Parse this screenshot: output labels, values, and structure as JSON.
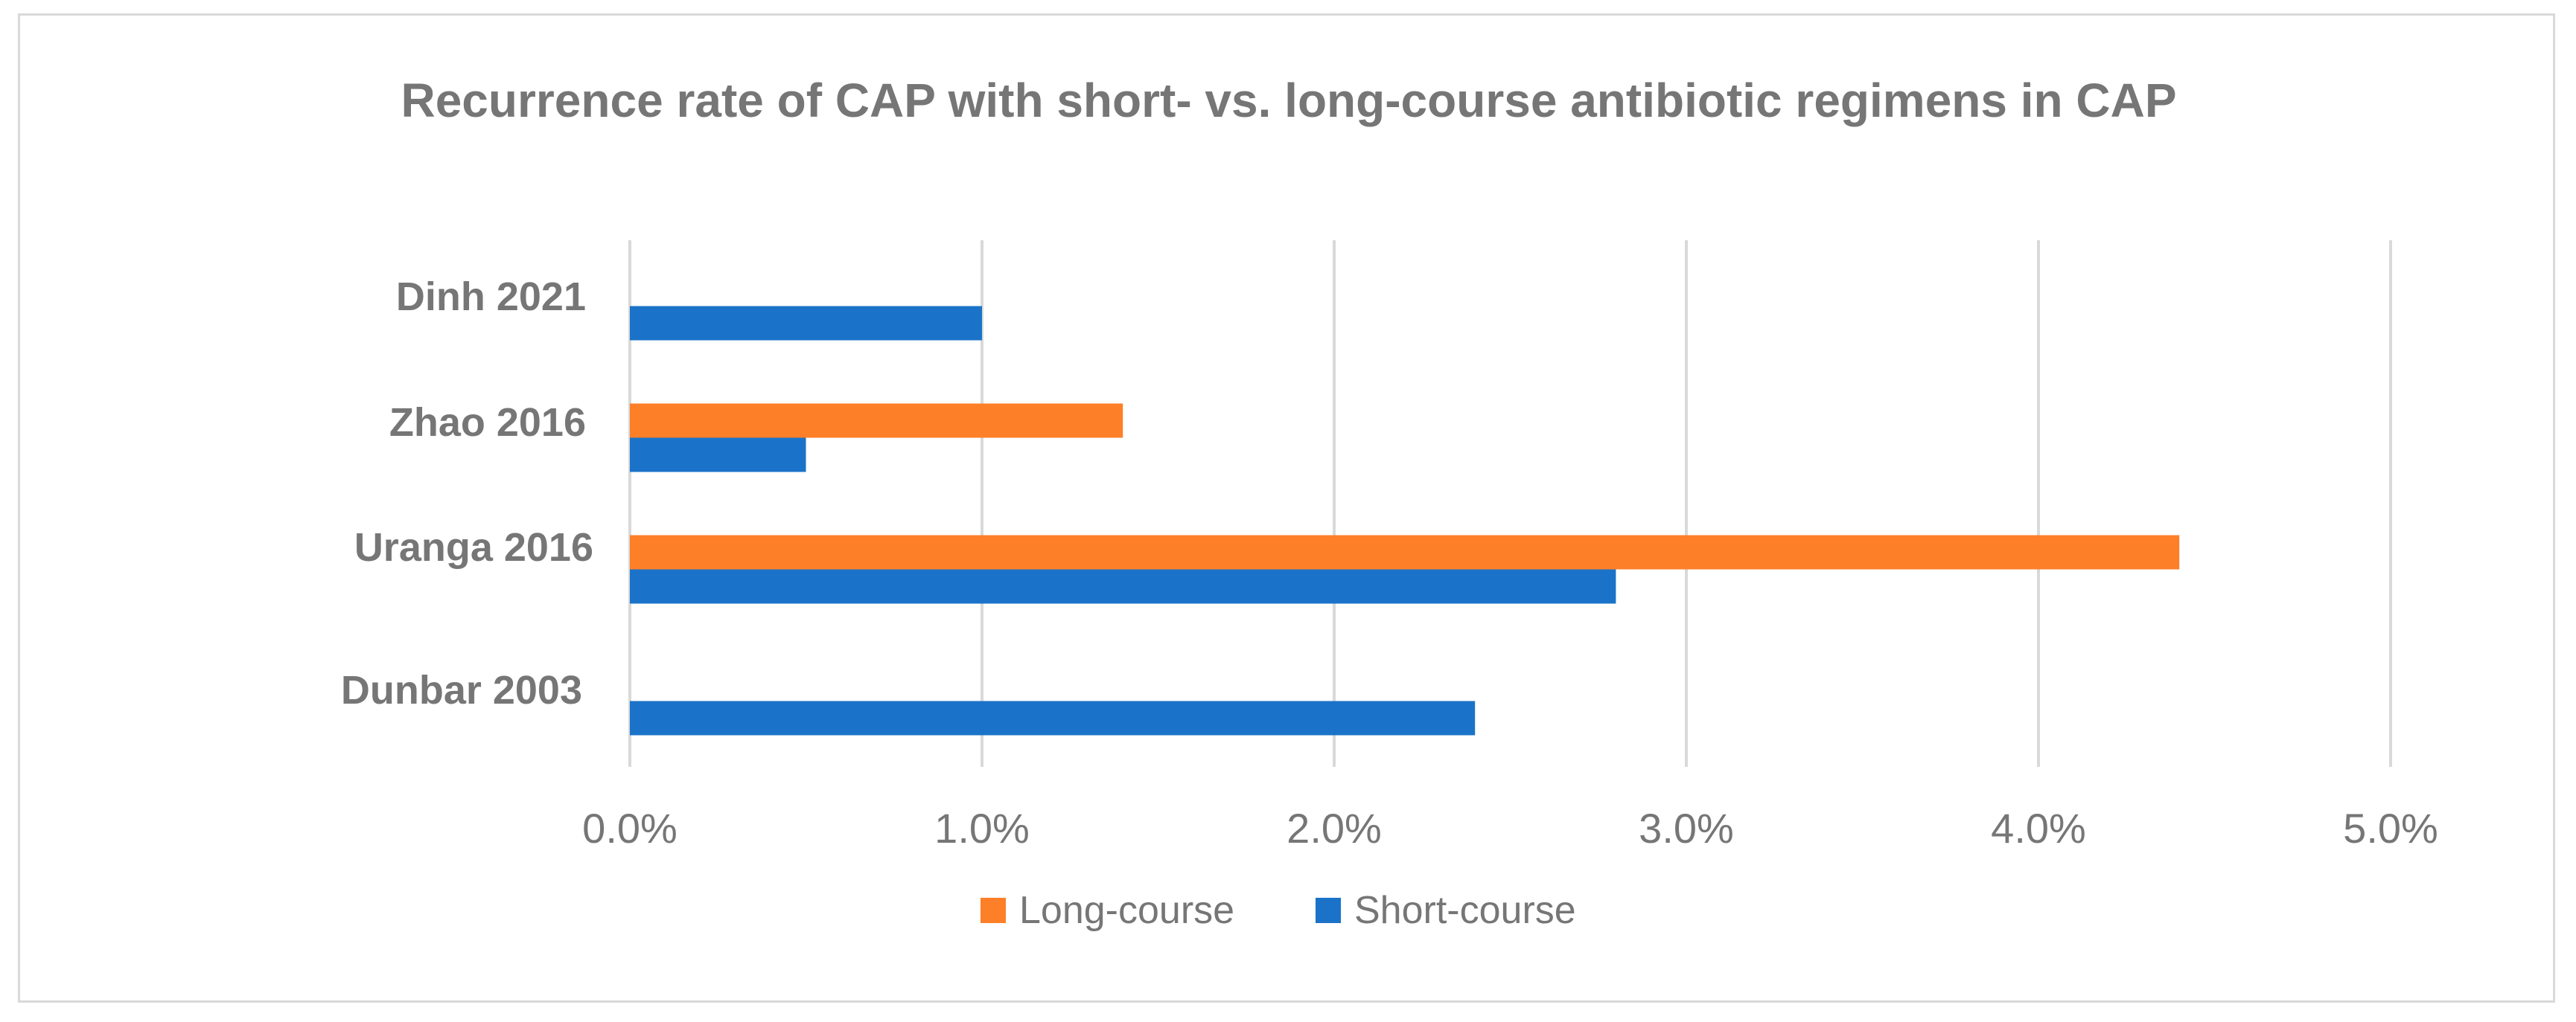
{
  "chart_data": {
    "type": "bar",
    "orientation": "horizontal",
    "title": "Recurrence rate of CAP with short- vs. long-course antibiotic regimens in CAP",
    "categories": [
      "Dinh 2021",
      "Zhao 2016",
      "Uranga 2016",
      "Dunbar 2003"
    ],
    "series": [
      {
        "name": "Long-course",
        "color": "#fd7f28",
        "values": [
          null,
          1.4,
          4.4,
          null
        ]
      },
      {
        "name": "Short-course",
        "color": "#1a73c8",
        "values": [
          1.0,
          0.5,
          2.8,
          2.4
        ]
      }
    ],
    "xlim": [
      0,
      5
    ],
    "xticks": [
      0,
      1,
      2,
      3,
      4,
      5
    ],
    "xtick_labels": [
      "0.0%",
      "1.0%",
      "2.0%",
      "3.0%",
      "4.0%",
      "5.0%"
    ],
    "xlabel": "",
    "ylabel": "",
    "grid": true,
    "legend": [
      "Long-course",
      "Short-course"
    ],
    "legend_position": "bottom",
    "gridline_color": "#d9d9d9"
  }
}
